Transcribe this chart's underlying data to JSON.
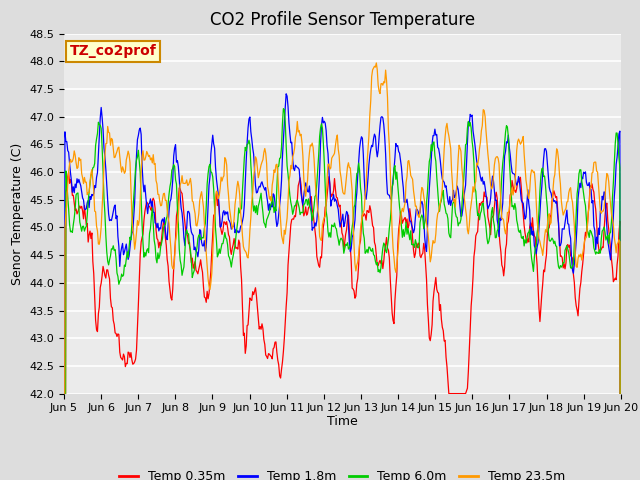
{
  "title": "CO2 Profile Sensor Temperature",
  "ylabel": "Senor Temperature (C)",
  "xlabel": "Time",
  "ylim": [
    42.0,
    48.5
  ],
  "yticks": [
    42.0,
    42.5,
    43.0,
    43.5,
    44.0,
    44.5,
    45.0,
    45.5,
    46.0,
    46.5,
    47.0,
    47.5,
    48.0,
    48.5
  ],
  "xtick_labels": [
    "Jun 5",
    "Jun 6",
    "Jun 7",
    "Jun 8",
    "Jun 9",
    "Jun 10",
    "Jun 11",
    "Jun 12",
    "Jun 13",
    "Jun 14",
    "Jun 15",
    "Jun 16",
    "Jun 17",
    "Jun 18",
    "Jun 19",
    "Jun 20"
  ],
  "line_colors": [
    "#ff0000",
    "#0000ff",
    "#00cc00",
    "#ff9900"
  ],
  "line_labels": [
    "Temp 0.35m",
    "Temp 1.8m",
    "Temp 6.0m",
    "Temp 23.5m"
  ],
  "annotation_text": "TZ_co2prof",
  "annotation_bg": "#ffffcc",
  "annotation_border": "#cc8800",
  "annotation_text_color": "#cc0000",
  "fig_bg_color": "#dddddd",
  "plot_bg_color": "#ebebeb",
  "n_points": 600,
  "title_fontsize": 12,
  "axis_fontsize": 9,
  "tick_fontsize": 8,
  "legend_fontsize": 9
}
